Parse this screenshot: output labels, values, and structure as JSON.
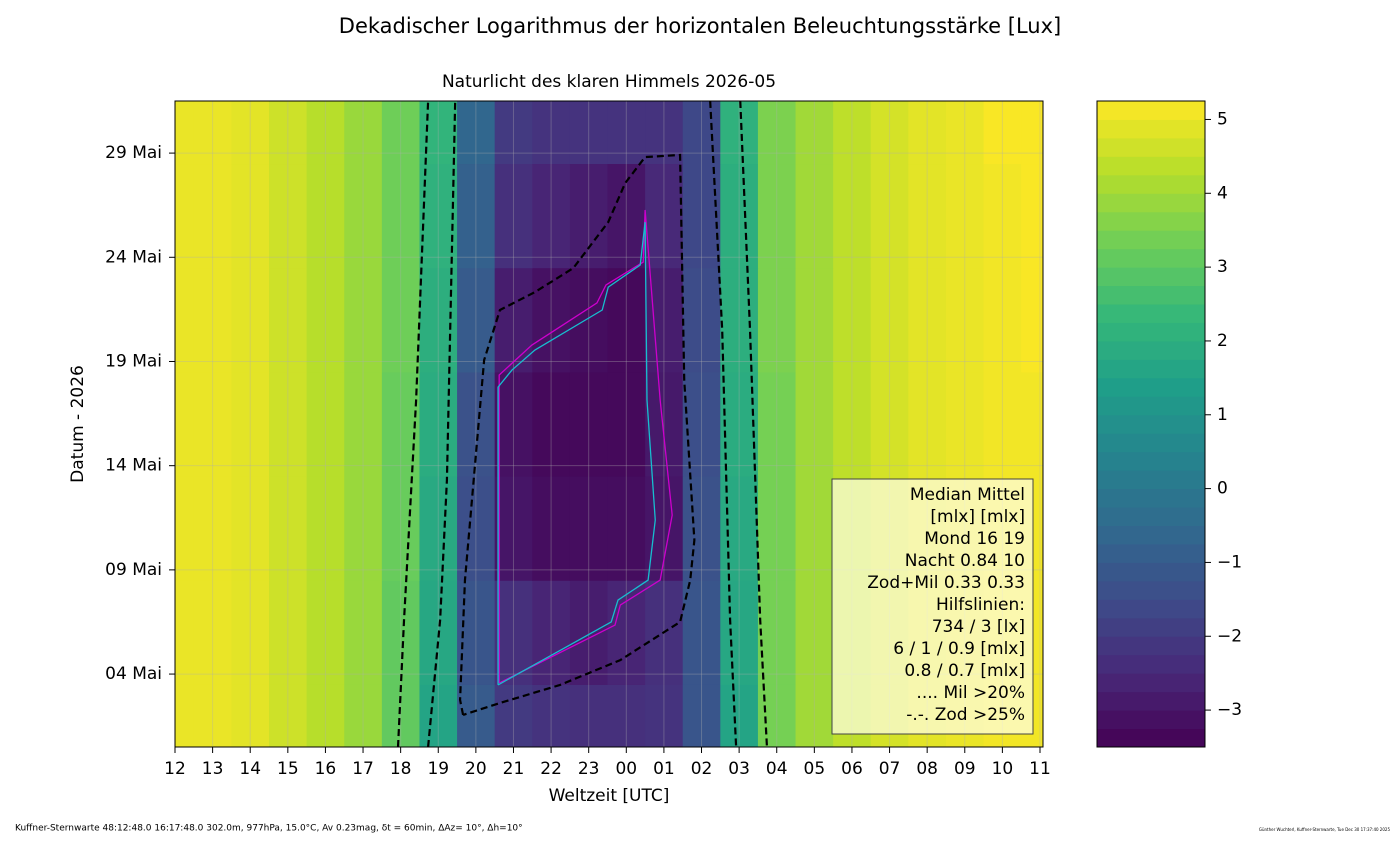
{
  "chart_data": {
    "type": "contour",
    "suptitle": "Dekadischer Logarithmus der horizontalen Beleuchtungsstärke [Lux]",
    "title": "Naturlicht des klaren Himmels 2026-05",
    "xlabel": "Weltzeit [UTC]",
    "ylabel": "Datum - 2026",
    "colormap": "viridis",
    "grid": true,
    "xlim": [
      0,
      23.08
    ],
    "ylim": [
      0.5,
      31.5
    ],
    "clim": [
      -3.5,
      5.25
    ],
    "xticks": [
      {
        "value": 0,
        "label": "12"
      },
      {
        "value": 1,
        "label": "13"
      },
      {
        "value": 2,
        "label": "14"
      },
      {
        "value": 3,
        "label": "15"
      },
      {
        "value": 4,
        "label": "16"
      },
      {
        "value": 5,
        "label": "17"
      },
      {
        "value": 6,
        "label": "18"
      },
      {
        "value": 7,
        "label": "19"
      },
      {
        "value": 8,
        "label": "20"
      },
      {
        "value": 9,
        "label": "21"
      },
      {
        "value": 10,
        "label": "22"
      },
      {
        "value": 11,
        "label": "23"
      },
      {
        "value": 12,
        "label": "00"
      },
      {
        "value": 13,
        "label": "01"
      },
      {
        "value": 14,
        "label": "02"
      },
      {
        "value": 15,
        "label": "03"
      },
      {
        "value": 16,
        "label": "04"
      },
      {
        "value": 17,
        "label": "05"
      },
      {
        "value": 18,
        "label": "06"
      },
      {
        "value": 19,
        "label": "07"
      },
      {
        "value": 20,
        "label": "08"
      },
      {
        "value": 21,
        "label": "09"
      },
      {
        "value": 22,
        "label": "10"
      },
      {
        "value": 23,
        "label": "11"
      }
    ],
    "yticks": [
      {
        "value": 4,
        "label": "04 Mai"
      },
      {
        "value": 9,
        "label": "09 Mai"
      },
      {
        "value": 14,
        "label": "14 Mai"
      },
      {
        "value": 19,
        "label": "19 Mai"
      },
      {
        "value": 24,
        "label": "24 Mai"
      },
      {
        "value": 29,
        "label": "29 Mai"
      }
    ],
    "cticks": [
      {
        "value": -3,
        "label": "−3"
      },
      {
        "value": -2,
        "label": "−2"
      },
      {
        "value": -1,
        "label": "−1"
      },
      0,
      1,
      2,
      3,
      4,
      5
    ],
    "x": [
      0,
      1,
      2,
      3,
      4,
      5,
      6,
      7,
      8,
      9,
      10,
      11,
      12,
      13,
      14,
      15,
      16,
      17,
      18,
      19,
      20,
      21,
      22,
      23
    ],
    "y": [
      1,
      6,
      11,
      16,
      21,
      26,
      31
    ],
    "z": [
      [
        5.0,
        5.0,
        4.9,
        4.6,
        4.3,
        3.9,
        3.1,
        1.6,
        -1.0,
        -2.0,
        -2.2,
        -2.3,
        -2.3,
        -2.2,
        -1.2,
        1.6,
        3.4,
        4.0,
        4.4,
        4.7,
        4.9,
        5.0,
        5.1,
        5.1
      ],
      [
        5.0,
        5.0,
        4.9,
        4.6,
        4.3,
        3.9,
        3.1,
        1.7,
        -1.2,
        -2.3,
        -2.6,
        -2.8,
        -2.6,
        -2.3,
        -1.2,
        1.7,
        3.4,
        4.0,
        4.4,
        4.7,
        4.9,
        5.0,
        5.1,
        5.1
      ],
      [
        5.0,
        5.0,
        4.9,
        4.6,
        4.3,
        3.9,
        3.2,
        1.8,
        -1.4,
        -3.0,
        -3.2,
        -3.2,
        -3.2,
        -3.0,
        -1.3,
        1.8,
        3.4,
        4.0,
        4.4,
        4.7,
        4.9,
        5.0,
        5.1,
        5.1
      ],
      [
        5.0,
        5.0,
        4.9,
        4.6,
        4.3,
        3.9,
        3.2,
        1.9,
        -1.3,
        -3.1,
        -3.3,
        -3.3,
        -3.3,
        -2.9,
        -1.4,
        1.9,
        3.4,
        4.0,
        4.4,
        4.7,
        4.9,
        5.0,
        5.1,
        5.1
      ],
      [
        5.0,
        5.0,
        4.9,
        4.6,
        4.3,
        3.9,
        3.3,
        2.0,
        -1.0,
        -2.8,
        -3.1,
        -3.2,
        -3.3,
        -2.8,
        -1.5,
        2.0,
        3.5,
        4.0,
        4.4,
        4.7,
        4.9,
        5.0,
        5.1,
        5.2
      ],
      [
        5.0,
        5.0,
        4.9,
        4.6,
        4.3,
        3.9,
        3.3,
        2.1,
        -0.8,
        -2.3,
        -2.6,
        -2.8,
        -3.0,
        -2.5,
        -1.6,
        2.0,
        3.5,
        4.0,
        4.4,
        4.7,
        4.9,
        5.0,
        5.1,
        5.2
      ],
      [
        5.0,
        5.0,
        4.9,
        4.6,
        4.3,
        3.9,
        3.3,
        2.2,
        -0.6,
        -2.0,
        -2.2,
        -2.2,
        -2.2,
        -2.2,
        -1.6,
        2.1,
        3.5,
        4.0,
        4.4,
        4.7,
        4.9,
        5.0,
        5.2,
        5.2
      ]
    ],
    "lines": [
      {
        "color": "#000000",
        "style": "dashed",
        "x": [
          5.93,
          6.09,
          6.41,
          6.73
        ],
        "y": [
          0.5,
          6.6,
          17.1,
          31.5
        ]
      },
      {
        "color": "#000000",
        "style": "dashed",
        "x": [
          6.73,
          7.05,
          7.23,
          7.45
        ],
        "y": [
          0.5,
          6.6,
          13.3,
          31.5
        ]
      },
      {
        "color": "#000000",
        "style": "dashed",
        "x": [
          14.23,
          14.55,
          14.76,
          14.92
        ],
        "y": [
          31.5,
          20.5,
          6.6,
          0.5
        ]
      },
      {
        "color": "#000000",
        "style": "dashed",
        "x": [
          15.03,
          15.29,
          15.56,
          15.74
        ],
        "y": [
          31.5,
          20.5,
          6.6,
          0.5
        ]
      },
      {
        "color": "#000000",
        "style": "dashed",
        "x": [
          7.66,
          7.58,
          7.71,
          8.22,
          8.64,
          9.57,
          10.59,
          11.52,
          11.97,
          12.5,
          13.43,
          13.54,
          13.81,
          13.7,
          13.43,
          11.84,
          10.24,
          8.64,
          7.66
        ],
        "y": [
          2.04,
          2.76,
          8.51,
          19.07,
          21.47,
          22.33,
          23.48,
          25.69,
          27.56,
          28.81,
          28.91,
          18.11,
          10.43,
          8.51,
          6.5,
          4.67,
          3.48,
          2.61,
          2.04
        ]
      },
      {
        "color": "#cc00cc",
        "style": "solid",
        "x": [
          8.62,
          8.62,
          9.49,
          11.22,
          11.46,
          12.45,
          12.5,
          12.9,
          13.22,
          12.9,
          11.84,
          11.7,
          8.62
        ],
        "y": [
          3.57,
          18.35,
          19.79,
          21.81,
          22.67,
          23.77,
          26.27,
          17.15,
          11.63,
          8.51,
          7.31,
          6.35,
          3.57
        ]
      },
      {
        "color": "#17becf",
        "style": "solid",
        "x": [
          8.59,
          8.59,
          8.96,
          9.57,
          11.36,
          11.52,
          12.37,
          12.5,
          12.55,
          12.77,
          12.58,
          11.78,
          11.6,
          8.59
        ],
        "y": [
          3.48,
          17.77,
          18.59,
          19.55,
          21.47,
          22.57,
          23.63,
          25.69,
          17.15,
          11.39,
          8.51,
          7.55,
          6.5,
          3.48
        ]
      }
    ],
    "annotation": [
      "Median Mittel",
      "[mlx]  [mlx]",
      "Mond   16  19",
      "Nacht 0.84  10",
      "Zod+Mil 0.33  0.33",
      "Hilfslinien:",
      "734 / 3  [lx]",
      "6 /  1 / 0.9 [mlx]",
      "0.8 / 0.7 [mlx]",
      ".... Mil >20%",
      "-.-. Zod >25%"
    ],
    "footer": "Kuffner-Sternwarte 48:12:48.0 16:17:48.0 302.0m,  977hPa, 15.0°C, Av 0.23mag, δt = 60min, ΔAz= 10°, Δh=10°",
    "credit": "Günther Wuchterl, Kuffner-Sternwarte, Tue Dec 30 17:37:40 2025"
  }
}
